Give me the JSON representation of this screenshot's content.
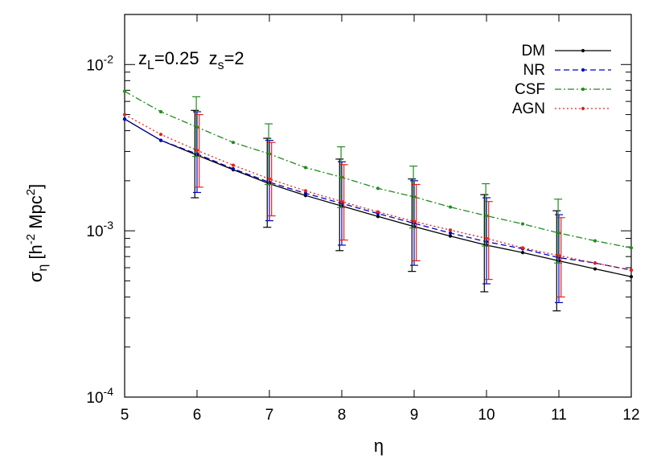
{
  "chart_data": {
    "type": "line",
    "xlabel": "η",
    "ylabel": {
      "base": "σ",
      "sub": "η",
      "pre": " [h",
      "sup1": "-2",
      "mid": " Mpc",
      "sup2": "2",
      "post": "]"
    },
    "annotation": {
      "z": "z",
      "l_sub": "L",
      "l_val": "=0.25",
      "s_sub": "s",
      "s_val": "=2"
    },
    "xlim": [
      5,
      12
    ],
    "ylim": [
      0.0001,
      0.02
    ],
    "yscale": "log",
    "grid": false,
    "legend_position": "top-right",
    "x_ticks": [
      "5",
      "6",
      "7",
      "8",
      "9",
      "10",
      "11",
      "12"
    ],
    "y_ticks": [
      {
        "value": 0.0001,
        "base": "10",
        "exp": "-4"
      },
      {
        "value": 0.001,
        "base": "10",
        "exp": "-3"
      },
      {
        "value": 0.01,
        "base": "10",
        "exp": "-2"
      }
    ],
    "x": [
      5,
      5.5,
      6,
      6.5,
      7,
      7.5,
      8,
      8.5,
      9,
      9.5,
      10,
      10.5,
      11,
      11.5,
      12
    ],
    "series": [
      {
        "name": "DM",
        "color": "#000000",
        "dash": "none",
        "err_offset": -0.03,
        "values": [
          0.0047,
          0.0035,
          0.00285,
          0.00233,
          0.00192,
          0.00163,
          0.00141,
          0.00122,
          0.00106,
          0.00093,
          0.00082,
          0.00074,
          0.00066,
          0.00059,
          0.00053
        ],
        "errors": [
          {
            "x": 6,
            "lo": 0.00158,
            "hi": 0.0053
          },
          {
            "x": 7,
            "lo": 0.00105,
            "hi": 0.0036
          },
          {
            "x": 8,
            "lo": 0.00076,
            "hi": 0.0027
          },
          {
            "x": 9,
            "lo": 0.00057,
            "hi": 0.00205
          },
          {
            "x": 10,
            "lo": 0.00043,
            "hi": 0.00165
          },
          {
            "x": 11,
            "lo": 0.00033,
            "hi": 0.00132
          }
        ]
      },
      {
        "name": "NR",
        "color": "#0000cc",
        "dash": "7,4",
        "err_offset": 0.0,
        "values": [
          0.0047,
          0.0035,
          0.0029,
          0.00236,
          0.00196,
          0.00168,
          0.00146,
          0.00127,
          0.00111,
          0.00097,
          0.00086,
          0.00078,
          0.00069,
          0.00064,
          0.00058
        ],
        "errors": [
          {
            "x": 6,
            "lo": 0.0017,
            "hi": 0.0052
          },
          {
            "x": 7,
            "lo": 0.00115,
            "hi": 0.0035
          },
          {
            "x": 8,
            "lo": 0.00082,
            "hi": 0.0026
          },
          {
            "x": 9,
            "lo": 0.00062,
            "hi": 0.002
          },
          {
            "x": 10,
            "lo": 0.00048,
            "hi": 0.00158
          },
          {
            "x": 11,
            "lo": 0.00037,
            "hi": 0.00125
          }
        ]
      },
      {
        "name": "CSF",
        "color": "#228b22",
        "dash": "8,3,2,3",
        "err_offset": -0.01,
        "values": [
          0.0069,
          0.0052,
          0.0042,
          0.0034,
          0.0029,
          0.0024,
          0.0021,
          0.0018,
          0.0016,
          0.00139,
          0.00123,
          0.0011,
          0.00097,
          0.00087,
          0.00079
        ],
        "errors": [
          {
            "x": 6,
            "lo": 0.0028,
            "hi": 0.0064
          },
          {
            "x": 7,
            "lo": 0.0019,
            "hi": 0.0044
          },
          {
            "x": 8,
            "lo": 0.00138,
            "hi": 0.0032
          },
          {
            "x": 9,
            "lo": 0.00104,
            "hi": 0.00245
          },
          {
            "x": 10,
            "lo": 0.00081,
            "hi": 0.00192
          },
          {
            "x": 11,
            "lo": 0.00064,
            "hi": 0.00155
          }
        ]
      },
      {
        "name": "AGN",
        "color": "#e8201a",
        "dash": "2,3",
        "err_offset": 0.03,
        "values": [
          0.005,
          0.0038,
          0.00305,
          0.00248,
          0.00205,
          0.00174,
          0.0015,
          0.0013,
          0.00114,
          0.00101,
          0.0009,
          0.00079,
          0.00071,
          0.00064,
          0.00058
        ],
        "errors": [
          {
            "x": 6,
            "lo": 0.00183,
            "hi": 0.005
          },
          {
            "x": 7,
            "lo": 0.00123,
            "hi": 0.0034
          },
          {
            "x": 8,
            "lo": 0.00088,
            "hi": 0.0025
          },
          {
            "x": 9,
            "lo": 0.00066,
            "hi": 0.0019
          },
          {
            "x": 10,
            "lo": 0.00051,
            "hi": 0.0015
          },
          {
            "x": 11,
            "lo": 0.0004,
            "hi": 0.0012
          }
        ]
      }
    ]
  }
}
